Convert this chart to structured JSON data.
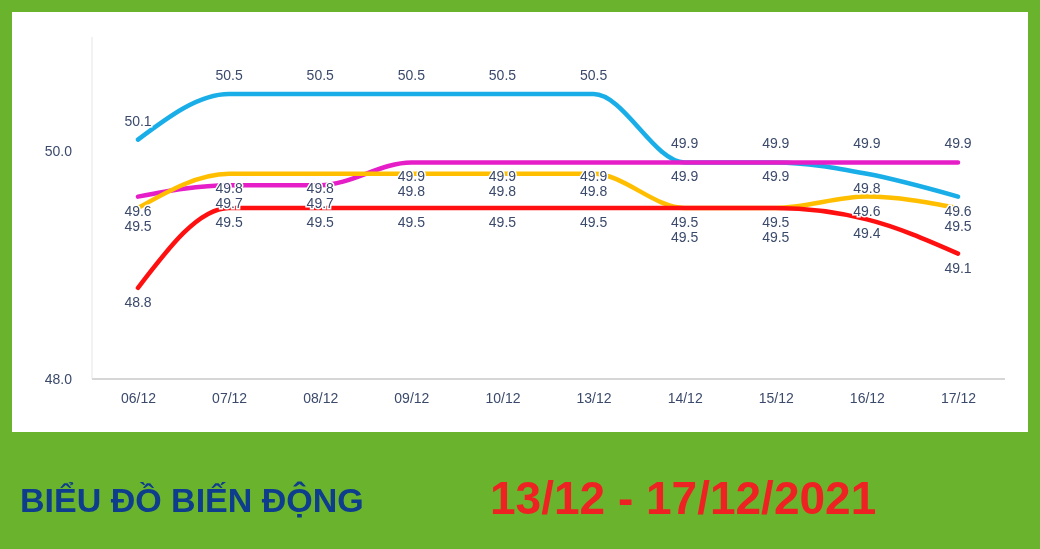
{
  "chart_data": {
    "type": "line",
    "title": "BIỂU ĐỒ BIẾN ĐỘNG",
    "subtitle": "13/12 - 17/12/2021",
    "categories": [
      "06/12",
      "07/12",
      "08/12",
      "09/12",
      "10/12",
      "13/12",
      "14/12",
      "15/12",
      "16/12",
      "17/12"
    ],
    "series": [
      {
        "color": "#1aaee8",
        "values": [
          50.1,
          50.5,
          50.5,
          50.5,
          50.5,
          50.5,
          49.9,
          49.9,
          49.8,
          49.6
        ]
      },
      {
        "color": "#e61ec8",
        "values": [
          49.6,
          49.7,
          49.7,
          49.9,
          49.9,
          49.9,
          49.9,
          49.9,
          49.9,
          49.9
        ]
      },
      {
        "color": "#ffbf00",
        "values": [
          49.5,
          49.8,
          49.8,
          49.8,
          49.8,
          49.8,
          49.5,
          49.5,
          49.6,
          49.5
        ]
      },
      {
        "color": "#ff1010",
        "values": [
          48.8,
          49.5,
          49.5,
          49.5,
          49.5,
          49.5,
          49.5,
          49.5,
          49.4,
          49.1
        ]
      }
    ],
    "ylim": [
      48,
      51
    ],
    "yticks": [
      {
        "value": 48,
        "label": "48.0"
      },
      {
        "value": 50,
        "label": "50.0"
      }
    ],
    "grid": false,
    "marker": "none",
    "line_style": "solid",
    "data_labels": true
  }
}
